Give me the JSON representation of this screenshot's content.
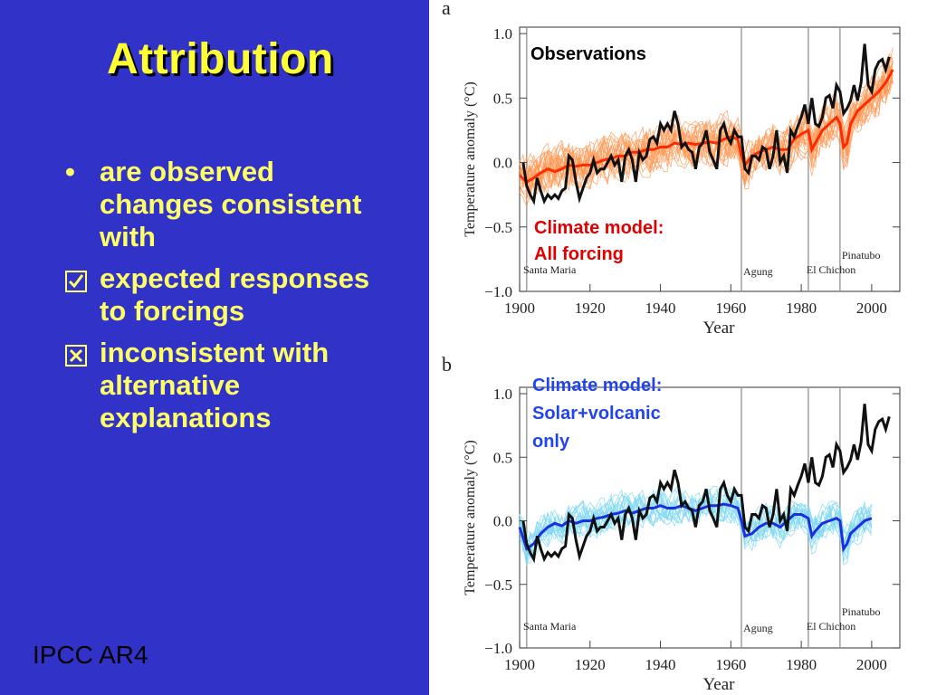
{
  "slide": {
    "title": "Attribution",
    "bullets": [
      {
        "marker": "•",
        "marker_icon": "bullet-dot-icon",
        "text": "are observed changes consistent with"
      },
      {
        "marker": "☑",
        "marker_icon": "checked-box-icon",
        "text": "expected responses to forcings"
      },
      {
        "marker": "☒",
        "marker_icon": "crossed-box-icon",
        "text": "inconsistent with alternative explanations"
      }
    ],
    "footer": "IPCC AR4"
  },
  "colors": {
    "background": "#3132c8",
    "title": "#ffff33",
    "bullet_text": "#ffff66",
    "observations": "#111111",
    "all_forcing_mean": "#ff2a00",
    "all_forcing_runs": "#ff9a55",
    "natural_mean": "#1a2fe0",
    "natural_runs": "#7fd8f2",
    "label_red": "#e00000",
    "label_blue": "#2244ee"
  },
  "chart_data": [
    {
      "panel": "a",
      "type": "line",
      "xlabel": "Year",
      "ylabel": "Temperature anomaly (°C)",
      "xlim": [
        1900,
        2008
      ],
      "ylim": [
        -1.0,
        1.05
      ],
      "xticks": [
        "1900",
        "1920",
        "1940",
        "1960",
        "1980",
        "2000"
      ],
      "yticks": [
        "1.0",
        "0.5",
        "0.0",
        "−0.5",
        "−1.0"
      ],
      "annotations": [
        {
          "text": "Observations",
          "color": "#000000"
        },
        {
          "text": "Climate model:",
          "color": "#e00000"
        },
        {
          "text": "All forcing",
          "color": "#e00000"
        }
      ],
      "volcanoes": [
        {
          "name": "Santa Maria",
          "year": 1902
        },
        {
          "name": "Agung",
          "year": 1963
        },
        {
          "name": "El Chichon",
          "year": 1982
        },
        {
          "name": "Pinatubo",
          "year": 1991
        }
      ],
      "series": [
        {
          "name": "Observations",
          "color": "#111111",
          "x": [
            1901,
            1902,
            1903,
            1904,
            1905,
            1906,
            1907,
            1908,
            1909,
            1910,
            1911,
            1912,
            1913,
            1914,
            1915,
            1916,
            1917,
            1918,
            1919,
            1920,
            1921,
            1922,
            1923,
            1924,
            1925,
            1926,
            1927,
            1928,
            1929,
            1930,
            1931,
            1932,
            1933,
            1934,
            1935,
            1936,
            1937,
            1938,
            1939,
            1940,
            1941,
            1942,
            1943,
            1944,
            1945,
            1946,
            1947,
            1948,
            1949,
            1950,
            1951,
            1952,
            1953,
            1954,
            1955,
            1956,
            1957,
            1958,
            1959,
            1960,
            1961,
            1962,
            1963,
            1964,
            1965,
            1966,
            1967,
            1968,
            1969,
            1970,
            1971,
            1972,
            1973,
            1974,
            1975,
            1976,
            1977,
            1978,
            1979,
            1980,
            1981,
            1982,
            1983,
            1984,
            1985,
            1986,
            1987,
            1988,
            1989,
            1990,
            1991,
            1992,
            1993,
            1994,
            1995,
            1996,
            1997,
            1998,
            1999,
            2000,
            2001,
            2002,
            2003,
            2004,
            2005
          ],
          "y": [
            0.0,
            -0.18,
            -0.25,
            -0.3,
            -0.12,
            -0.22,
            -0.3,
            -0.25,
            -0.28,
            -0.25,
            -0.28,
            -0.22,
            -0.2,
            0.05,
            0.02,
            -0.15,
            -0.28,
            -0.2,
            -0.12,
            -0.08,
            0.02,
            -0.08,
            -0.05,
            -0.05,
            0.0,
            0.05,
            -0.02,
            0.02,
            -0.15,
            0.05,
            0.1,
            0.02,
            -0.15,
            0.08,
            0.02,
            0.05,
            0.18,
            0.2,
            0.15,
            0.3,
            0.25,
            0.3,
            0.25,
            0.4,
            0.3,
            0.12,
            0.15,
            0.1,
            0.08,
            -0.05,
            0.12,
            0.15,
            0.25,
            0.08,
            0.02,
            -0.05,
            0.25,
            0.3,
            0.2,
            0.15,
            0.25,
            0.2,
            0.2,
            -0.05,
            -0.08,
            0.05,
            0.05,
            0.02,
            0.12,
            0.1,
            -0.05,
            0.05,
            0.25,
            0.0,
            0.05,
            -0.08,
            0.25,
            0.2,
            0.28,
            0.35,
            0.45,
            0.3,
            0.5,
            0.3,
            0.28,
            0.35,
            0.5,
            0.52,
            0.42,
            0.6,
            0.55,
            0.38,
            0.42,
            0.48,
            0.6,
            0.48,
            0.62,
            0.92,
            0.6,
            0.55,
            0.72,
            0.78,
            0.8,
            0.72,
            0.82
          ]
        },
        {
          "name": "Climate model: All forcing",
          "color": "#ff2a00",
          "x": [
            1900,
            1902,
            1904,
            1906,
            1908,
            1910,
            1912,
            1914,
            1916,
            1918,
            1920,
            1922,
            1924,
            1926,
            1928,
            1930,
            1932,
            1934,
            1936,
            1938,
            1940,
            1942,
            1944,
            1946,
            1948,
            1950,
            1952,
            1954,
            1956,
            1958,
            1960,
            1962,
            1963,
            1964,
            1966,
            1968,
            1970,
            1972,
            1974,
            1976,
            1978,
            1980,
            1982,
            1983,
            1984,
            1986,
            1988,
            1990,
            1991,
            1992,
            1993,
            1994,
            1996,
            1998,
            2000,
            2002,
            2004,
            2006
          ],
          "y": [
            -0.1,
            -0.15,
            -0.12,
            -0.08,
            -0.05,
            -0.07,
            -0.05,
            -0.02,
            -0.03,
            -0.02,
            -0.02,
            0.0,
            0.02,
            0.03,
            0.05,
            0.05,
            0.08,
            0.08,
            0.1,
            0.1,
            0.12,
            0.12,
            0.15,
            0.14,
            0.15,
            0.14,
            0.15,
            0.16,
            0.15,
            0.18,
            0.2,
            0.18,
            0.05,
            -0.02,
            0.05,
            0.08,
            0.1,
            0.12,
            0.1,
            0.1,
            0.18,
            0.22,
            0.25,
            0.1,
            0.15,
            0.25,
            0.3,
            0.35,
            0.3,
            0.12,
            0.15,
            0.3,
            0.4,
            0.45,
            0.5,
            0.55,
            0.62,
            0.72
          ]
        }
      ]
    },
    {
      "panel": "b",
      "type": "line",
      "xlabel": "Year",
      "ylabel": "Temperature anomaly (°C)",
      "xlim": [
        1900,
        2008
      ],
      "ylim": [
        -1.0,
        1.05
      ],
      "xticks": [
        "1900",
        "1920",
        "1940",
        "1960",
        "1980",
        "2000"
      ],
      "yticks": [
        "1.0",
        "0.5",
        "0.0",
        "−0.5",
        "−1.0"
      ],
      "annotations": [
        {
          "text": "Climate model:",
          "color": "#2244ee"
        },
        {
          "text": "Solar+volcanic",
          "color": "#2244ee"
        },
        {
          "text": "only",
          "color": "#2244ee"
        }
      ],
      "volcanoes": [
        {
          "name": "Santa Maria",
          "year": 1902
        },
        {
          "name": "Agung",
          "year": 1963
        },
        {
          "name": "El Chichon",
          "year": 1982
        },
        {
          "name": "Pinatubo",
          "year": 1991
        }
      ],
      "series": [
        {
          "name": "Observations",
          "color": "#111111",
          "x": [
            1901,
            1902,
            1903,
            1904,
            1905,
            1906,
            1907,
            1908,
            1909,
            1910,
            1911,
            1912,
            1913,
            1914,
            1915,
            1916,
            1917,
            1918,
            1919,
            1920,
            1921,
            1922,
            1923,
            1924,
            1925,
            1926,
            1927,
            1928,
            1929,
            1930,
            1931,
            1932,
            1933,
            1934,
            1935,
            1936,
            1937,
            1938,
            1939,
            1940,
            1941,
            1942,
            1943,
            1944,
            1945,
            1946,
            1947,
            1948,
            1949,
            1950,
            1951,
            1952,
            1953,
            1954,
            1955,
            1956,
            1957,
            1958,
            1959,
            1960,
            1961,
            1962,
            1963,
            1964,
            1965,
            1966,
            1967,
            1968,
            1969,
            1970,
            1971,
            1972,
            1973,
            1974,
            1975,
            1976,
            1977,
            1978,
            1979,
            1980,
            1981,
            1982,
            1983,
            1984,
            1985,
            1986,
            1987,
            1988,
            1989,
            1990,
            1991,
            1992,
            1993,
            1994,
            1995,
            1996,
            1997,
            1998,
            1999,
            2000,
            2001,
            2002,
            2003,
            2004,
            2005
          ],
          "y": [
            0.0,
            -0.18,
            -0.25,
            -0.3,
            -0.12,
            -0.22,
            -0.3,
            -0.25,
            -0.28,
            -0.25,
            -0.28,
            -0.22,
            -0.2,
            0.05,
            0.02,
            -0.15,
            -0.28,
            -0.2,
            -0.12,
            -0.08,
            0.02,
            -0.08,
            -0.05,
            -0.05,
            0.0,
            0.05,
            -0.02,
            0.02,
            -0.15,
            0.05,
            0.1,
            0.02,
            -0.15,
            0.08,
            0.02,
            0.05,
            0.18,
            0.2,
            0.15,
            0.3,
            0.25,
            0.3,
            0.25,
            0.4,
            0.3,
            0.12,
            0.15,
            0.1,
            0.08,
            -0.05,
            0.12,
            0.15,
            0.25,
            0.08,
            0.02,
            -0.05,
            0.25,
            0.3,
            0.2,
            0.15,
            0.25,
            0.2,
            0.2,
            -0.05,
            -0.08,
            0.05,
            0.05,
            0.02,
            0.12,
            0.1,
            -0.05,
            0.05,
            0.25,
            0.0,
            0.05,
            -0.08,
            0.25,
            0.2,
            0.28,
            0.35,
            0.45,
            0.3,
            0.5,
            0.3,
            0.28,
            0.35,
            0.5,
            0.52,
            0.42,
            0.6,
            0.55,
            0.38,
            0.42,
            0.48,
            0.6,
            0.48,
            0.62,
            0.92,
            0.6,
            0.55,
            0.72,
            0.78,
            0.8,
            0.72,
            0.82
          ]
        },
        {
          "name": "Climate model: Solar+volcanic only",
          "color": "#1a2fe0",
          "x": [
            1900,
            1902,
            1904,
            1906,
            1908,
            1910,
            1912,
            1914,
            1916,
            1918,
            1920,
            1922,
            1924,
            1926,
            1928,
            1930,
            1932,
            1934,
            1936,
            1938,
            1940,
            1942,
            1944,
            1946,
            1948,
            1950,
            1952,
            1954,
            1956,
            1958,
            1960,
            1962,
            1963,
            1964,
            1966,
            1968,
            1970,
            1972,
            1974,
            1976,
            1978,
            1980,
            1982,
            1983,
            1984,
            1986,
            1988,
            1990,
            1991,
            1992,
            1993,
            1994,
            1996,
            1998,
            2000
          ],
          "y": [
            -0.05,
            -0.22,
            -0.18,
            -0.1,
            -0.05,
            -0.02,
            -0.04,
            0.0,
            -0.02,
            0.0,
            0.0,
            0.02,
            0.03,
            0.05,
            0.06,
            0.08,
            0.06,
            0.08,
            0.1,
            0.1,
            0.12,
            0.1,
            0.1,
            0.12,
            0.1,
            0.08,
            0.1,
            0.12,
            0.12,
            0.13,
            0.12,
            0.1,
            0.0,
            -0.12,
            -0.1,
            -0.05,
            -0.02,
            -0.02,
            -0.05,
            0.0,
            0.05,
            0.05,
            0.02,
            -0.12,
            -0.08,
            -0.02,
            0.0,
            0.02,
            0.0,
            -0.22,
            -0.18,
            -0.1,
            -0.05,
            0.0,
            0.02
          ]
        }
      ]
    }
  ]
}
